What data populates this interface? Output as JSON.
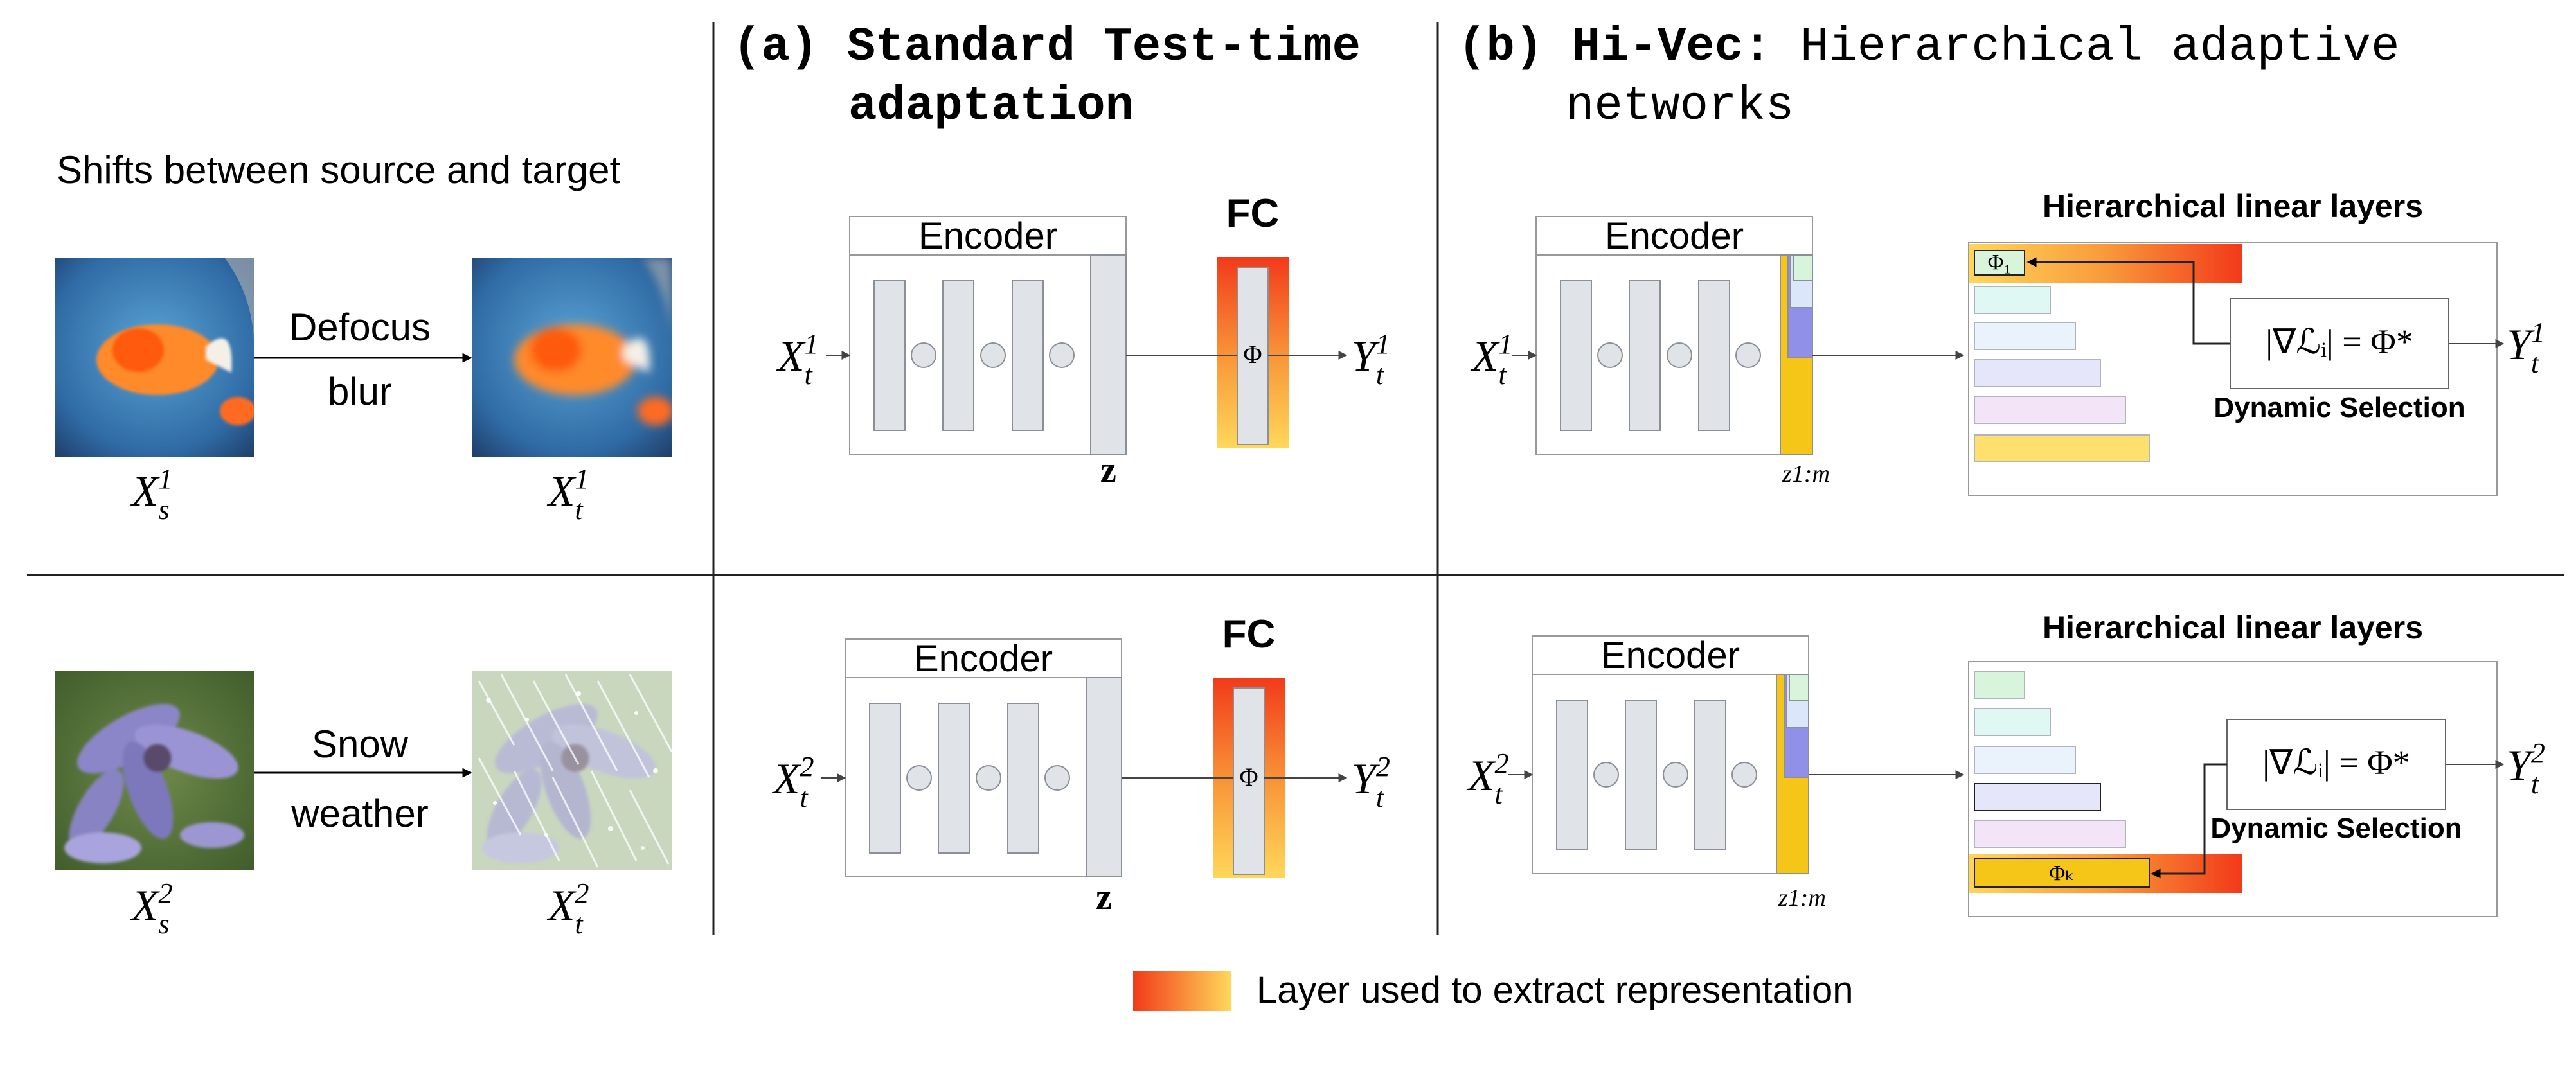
{
  "left_panel": {
    "header": "Shifts between source and target",
    "rows": [
      {
        "shift_line1": "Defocus",
        "shift_line2": "blur",
        "source_var": "X",
        "source_sub": "s",
        "source_sup": "1",
        "target_var": "X",
        "target_sub": "t",
        "target_sup": "1",
        "source_image": "goldfish-image",
        "target_image": "blurred-goldfish-image"
      },
      {
        "shift_line1": "Snow",
        "shift_line2": "weather",
        "source_var": "X",
        "source_sub": "s",
        "source_sup": "2",
        "target_var": "X",
        "target_sub": "t",
        "target_sup": "2",
        "source_image": "flower-image",
        "target_image": "snowy-flower-image"
      }
    ]
  },
  "panel_a": {
    "label": "(a)",
    "title_line1": "Standard Test-time",
    "title_line2": "adaptation",
    "encoder_label": "Encoder",
    "fc_label": "FC",
    "phi": "Φ",
    "z_label": "z",
    "rows": [
      {
        "input_var": "X",
        "input_sub": "t",
        "input_sup": "1",
        "output_var": "Y",
        "output_sub": "t",
        "output_sup": "1"
      },
      {
        "input_var": "X",
        "input_sub": "t",
        "input_sup": "2",
        "output_var": "Y",
        "output_sub": "t",
        "output_sup": "2"
      }
    ]
  },
  "panel_b": {
    "label": "(b)",
    "title_bold": "Hi-Vec:",
    "title_rest": "Hierarchical adaptive",
    "title_line2": "networks",
    "encoder_label": "Encoder",
    "z_label": "z",
    "z_sub": "1:m",
    "hier_label": "Hierarchical linear layers",
    "selection_eq": "|∇ℒᵢ| = Φ*",
    "dynamic_selection": "Dynamic Selection",
    "rows": [
      {
        "input_var": "X",
        "input_sub": "t",
        "input_sup": "1",
        "output_var": "Y",
        "output_sub": "t",
        "output_sup": "1",
        "selected_layer": "Φ₁"
      },
      {
        "input_var": "X",
        "input_sub": "t",
        "input_sup": "2",
        "output_var": "Y",
        "output_sub": "t",
        "output_sup": "2",
        "selected_layer": "Φₖ"
      }
    ]
  },
  "legend": {
    "text": "Layer used to extract representation"
  },
  "colors": {
    "gradient_top": "#f23a1a",
    "gradient_bottom": "#ffd75a",
    "layer_yellow": "#f5c518",
    "layer_purple": "#9090e8",
    "encoder_bar": "#e0e3e8"
  }
}
